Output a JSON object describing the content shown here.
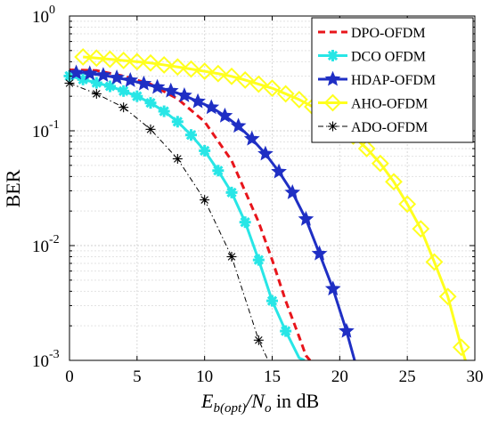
{
  "chart_data": {
    "type": "line",
    "title": "",
    "ylabel": "BER",
    "xlabel": {
      "main": "E",
      "sub1": "b(opt)",
      "slash": "/",
      "main2": "N",
      "sub2": "o",
      "suffix": " in dB"
    },
    "xlim": [
      0,
      30
    ],
    "ylim": [
      0.001,
      1
    ],
    "yscale": "log",
    "grid": true,
    "legend_position": "top-right",
    "x_ticks": [
      0,
      5,
      10,
      15,
      20,
      25,
      30
    ],
    "x_tick_labels": [
      "0",
      "5",
      "10",
      "15",
      "20",
      "25",
      "30"
    ],
    "y_ticks": [
      {
        "value": 1,
        "base": "10",
        "exp": "0"
      },
      {
        "value": 0.1,
        "base": "10",
        "exp": "-1"
      },
      {
        "value": 0.01,
        "base": "10",
        "exp": "-2"
      },
      {
        "value": 0.001,
        "base": "10",
        "exp": "-3"
      }
    ],
    "series": [
      {
        "name": "DPO-OFDM",
        "color": "#e8151b",
        "line_style": "dashed",
        "marker": "none",
        "x": [
          0,
          2,
          4,
          6,
          8,
          10,
          12,
          14,
          15,
          16,
          17,
          17.5,
          17.8
        ],
        "y": [
          0.34,
          0.335,
          0.3,
          0.255,
          0.19,
          0.12,
          0.055,
          0.016,
          0.0075,
          0.0033,
          0.0016,
          0.0011,
          0.001
        ]
      },
      {
        "name": "DCO OFDM",
        "color": "#28e6e6",
        "line_style": "solid",
        "marker": "asterisk",
        "x": [
          0,
          1,
          2,
          3,
          4,
          5,
          6,
          7,
          8,
          9,
          10,
          11,
          12,
          13,
          14,
          15,
          16,
          17,
          17.4
        ],
        "y": [
          0.3,
          0.28,
          0.262,
          0.244,
          0.222,
          0.2,
          0.175,
          0.148,
          0.12,
          0.092,
          0.067,
          0.045,
          0.029,
          0.016,
          0.0075,
          0.0033,
          0.0018,
          0.00105,
          0.001
        ]
      },
      {
        "name": "HDAP-OFDM",
        "color": "#1f2fc4",
        "line_style": "solid",
        "marker": "star",
        "x": [
          0.5,
          1.5,
          2.5,
          3.5,
          4.5,
          5.5,
          6.5,
          7.5,
          8.5,
          9.5,
          10.5,
          11.5,
          12.5,
          13.5,
          14.5,
          15.5,
          16.5,
          17.5,
          18.5,
          19.5,
          20.5,
          21.1
        ],
        "y": [
          0.32,
          0.315,
          0.305,
          0.29,
          0.275,
          0.257,
          0.24,
          0.223,
          0.203,
          0.18,
          0.16,
          0.135,
          0.11,
          0.085,
          0.063,
          0.044,
          0.029,
          0.017,
          0.0085,
          0.0042,
          0.0018,
          0.001
        ]
      },
      {
        "name": "AHO-OFDM",
        "color": "#ffff1e",
        "line_style": "solid",
        "marker": "diamond",
        "x": [
          1,
          2,
          3,
          4,
          5,
          6,
          7,
          8,
          9,
          10,
          11,
          12,
          13,
          14,
          15,
          16,
          17,
          18,
          19,
          20,
          21,
          22,
          23,
          24,
          25,
          26,
          27,
          28,
          29,
          29.3
        ],
        "y": [
          0.44,
          0.43,
          0.42,
          0.41,
          0.4,
          0.39,
          0.375,
          0.36,
          0.345,
          0.33,
          0.315,
          0.298,
          0.277,
          0.255,
          0.235,
          0.21,
          0.187,
          0.162,
          0.137,
          0.112,
          0.09,
          0.07,
          0.052,
          0.036,
          0.023,
          0.014,
          0.0072,
          0.0036,
          0.0013,
          0.001
        ]
      },
      {
        "name": "ADO-OFDM",
        "color": "#000000",
        "line_style": "dashdot",
        "marker": "asterisk",
        "x": [
          0,
          2,
          4,
          6,
          8,
          10,
          12,
          14,
          14.7
        ],
        "y": [
          0.26,
          0.21,
          0.16,
          0.103,
          0.057,
          0.025,
          0.008,
          0.0015,
          0.001
        ]
      }
    ],
    "marker_points": [
      {
        "series": 0,
        "x": []
      },
      {
        "series": 1,
        "x": [
          0,
          1,
          2,
          3,
          4,
          5,
          6,
          7,
          8,
          9,
          10,
          11,
          12,
          13,
          14,
          15,
          16
        ]
      },
      {
        "series": 2,
        "x": [
          0.5,
          1.5,
          2.5,
          3.5,
          4.5,
          5.5,
          6.5,
          7.5,
          8.5,
          9.5,
          10.5,
          11.5,
          12.5,
          13.5,
          14.5,
          15.5,
          16.5,
          17.5,
          18.5,
          19.5,
          20.5
        ]
      },
      {
        "series": 3,
        "x": [
          1,
          2,
          3,
          4,
          5,
          6,
          7,
          8,
          9,
          10,
          11,
          12,
          13,
          14,
          15,
          16,
          17,
          18,
          19,
          20,
          21,
          22,
          23,
          24,
          25,
          26,
          27,
          28,
          29
        ]
      },
      {
        "series": 4,
        "x": [
          0,
          2,
          4,
          6,
          8,
          10,
          12,
          14
        ]
      }
    ]
  }
}
